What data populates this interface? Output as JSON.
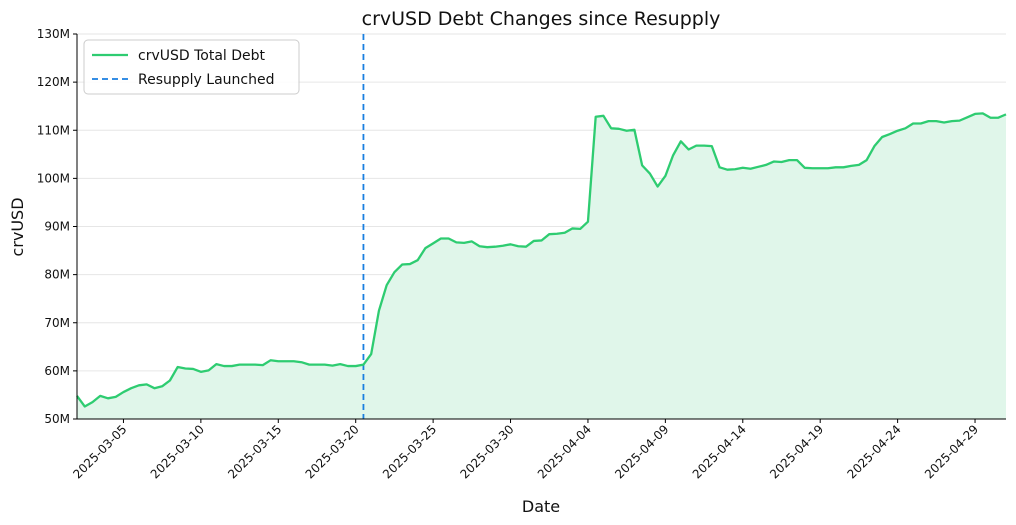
{
  "chart_data": {
    "type": "line",
    "title": "crvUSD Debt Changes since Resupply",
    "xlabel": "Date",
    "ylabel": "crvUSD",
    "x_range": [
      "2025-03-02",
      "2025-05-01"
    ],
    "ylim": [
      50,
      130
    ],
    "y_unit": "M",
    "y_ticks": [
      50,
      60,
      70,
      80,
      90,
      100,
      110,
      120,
      130
    ],
    "y_tick_labels": [
      "50M",
      "60M",
      "70M",
      "80M",
      "90M",
      "100M",
      "110M",
      "120M",
      "130M"
    ],
    "x_ticks": [
      "2025-03-05",
      "2025-03-10",
      "2025-03-15",
      "2025-03-20",
      "2025-03-25",
      "2025-03-30",
      "2025-04-04",
      "2025-04-09",
      "2025-04-14",
      "2025-04-19",
      "2025-04-24",
      "2025-04-29"
    ],
    "grid": "horizontal",
    "legend_position": "top-left",
    "series": [
      {
        "name": "crvUSD Total Debt",
        "color": "#2ecc71",
        "fill_color": "#e0f6ea",
        "points": [
          [
            "2025-03-02",
            54.8
          ],
          [
            "2025-03-02T12",
            52.6
          ],
          [
            "2025-03-03",
            53.5
          ],
          [
            "2025-03-03T12",
            54.8
          ],
          [
            "2025-03-04",
            54.3
          ],
          [
            "2025-03-04T12",
            54.6
          ],
          [
            "2025-03-05",
            55.6
          ],
          [
            "2025-03-05T12",
            56.4
          ],
          [
            "2025-03-06",
            57.0
          ],
          [
            "2025-03-06T12",
            57.2
          ],
          [
            "2025-03-07",
            56.4
          ],
          [
            "2025-03-07T12",
            56.8
          ],
          [
            "2025-03-08",
            58.0
          ],
          [
            "2025-03-08T12",
            60.8
          ],
          [
            "2025-03-09",
            60.5
          ],
          [
            "2025-03-09T12",
            60.4
          ],
          [
            "2025-03-10",
            59.8
          ],
          [
            "2025-03-10T12",
            60.1
          ],
          [
            "2025-03-11",
            61.4
          ],
          [
            "2025-03-11T12",
            61.0
          ],
          [
            "2025-03-12",
            61.0
          ],
          [
            "2025-03-12T12",
            61.3
          ],
          [
            "2025-03-13",
            61.3
          ],
          [
            "2025-03-13T12",
            61.3
          ],
          [
            "2025-03-14",
            61.2
          ],
          [
            "2025-03-14T12",
            62.2
          ],
          [
            "2025-03-15",
            62.0
          ],
          [
            "2025-03-15T12",
            62.0
          ],
          [
            "2025-03-16",
            62.0
          ],
          [
            "2025-03-16T12",
            61.8
          ],
          [
            "2025-03-17",
            61.3
          ],
          [
            "2025-03-17T12",
            61.3
          ],
          [
            "2025-03-18",
            61.3
          ],
          [
            "2025-03-18T12",
            61.1
          ],
          [
            "2025-03-19",
            61.4
          ],
          [
            "2025-03-19T12",
            61.0
          ],
          [
            "2025-03-20",
            61.0
          ],
          [
            "2025-03-20T12",
            61.3
          ],
          [
            "2025-03-21",
            63.5
          ],
          [
            "2025-03-21T12",
            72.5
          ],
          [
            "2025-03-22",
            77.8
          ],
          [
            "2025-03-22T12",
            80.5
          ],
          [
            "2025-03-23",
            82.1
          ],
          [
            "2025-03-23T12",
            82.2
          ],
          [
            "2025-03-24",
            83.0
          ],
          [
            "2025-03-24T12",
            85.5
          ],
          [
            "2025-03-25",
            86.5
          ],
          [
            "2025-03-25T12",
            87.5
          ],
          [
            "2025-03-26",
            87.5
          ],
          [
            "2025-03-26T12",
            86.7
          ],
          [
            "2025-03-27",
            86.6
          ],
          [
            "2025-03-27T12",
            86.9
          ],
          [
            "2025-03-28",
            85.9
          ],
          [
            "2025-03-28T12",
            85.7
          ],
          [
            "2025-03-29",
            85.8
          ],
          [
            "2025-03-29T12",
            86.0
          ],
          [
            "2025-03-30",
            86.3
          ],
          [
            "2025-03-30T12",
            85.9
          ],
          [
            "2025-03-31",
            85.8
          ],
          [
            "2025-03-31T12",
            87.0
          ],
          [
            "2025-04-01",
            87.1
          ],
          [
            "2025-04-01T12",
            88.4
          ],
          [
            "2025-04-02",
            88.5
          ],
          [
            "2025-04-02T12",
            88.7
          ],
          [
            "2025-04-03",
            89.6
          ],
          [
            "2025-04-03T12",
            89.5
          ],
          [
            "2025-04-04",
            91.0
          ],
          [
            "2025-04-04T12",
            112.8
          ],
          [
            "2025-04-05",
            113.0
          ],
          [
            "2025-04-05T12",
            110.4
          ],
          [
            "2025-04-06",
            110.3
          ],
          [
            "2025-04-06T12",
            109.9
          ],
          [
            "2025-04-07",
            110.1
          ],
          [
            "2025-04-07T12",
            102.7
          ],
          [
            "2025-04-08",
            101.0
          ],
          [
            "2025-04-08T12",
            98.3
          ],
          [
            "2025-04-09",
            100.5
          ],
          [
            "2025-04-09T12",
            104.8
          ],
          [
            "2025-04-10",
            107.7
          ],
          [
            "2025-04-10T12",
            106.0
          ],
          [
            "2025-04-11",
            106.8
          ],
          [
            "2025-04-11T12",
            106.8
          ],
          [
            "2025-04-12",
            106.7
          ],
          [
            "2025-04-12T12",
            102.3
          ],
          [
            "2025-04-13",
            101.8
          ],
          [
            "2025-04-13T12",
            101.9
          ],
          [
            "2025-04-14",
            102.2
          ],
          [
            "2025-04-14T12",
            102.0
          ],
          [
            "2025-04-15",
            102.4
          ],
          [
            "2025-04-15T12",
            102.8
          ],
          [
            "2025-04-16",
            103.5
          ],
          [
            "2025-04-16T12",
            103.4
          ],
          [
            "2025-04-17",
            103.8
          ],
          [
            "2025-04-17T12",
            103.8
          ],
          [
            "2025-04-18",
            102.2
          ],
          [
            "2025-04-18T12",
            102.1
          ],
          [
            "2025-04-19",
            102.1
          ],
          [
            "2025-04-19T12",
            102.1
          ],
          [
            "2025-04-20",
            102.3
          ],
          [
            "2025-04-20T12",
            102.3
          ],
          [
            "2025-04-21",
            102.6
          ],
          [
            "2025-04-21T12",
            102.8
          ],
          [
            "2025-04-22",
            103.8
          ],
          [
            "2025-04-22T12",
            106.7
          ],
          [
            "2025-04-23",
            108.6
          ],
          [
            "2025-04-23T12",
            109.2
          ],
          [
            "2025-04-24",
            109.9
          ],
          [
            "2025-04-24T12",
            110.4
          ],
          [
            "2025-04-25",
            111.4
          ],
          [
            "2025-04-25T12",
            111.4
          ],
          [
            "2025-04-26",
            111.9
          ],
          [
            "2025-04-26T12",
            111.9
          ],
          [
            "2025-04-27",
            111.6
          ],
          [
            "2025-04-27T12",
            111.9
          ],
          [
            "2025-04-28",
            112.0
          ],
          [
            "2025-04-28T12",
            112.7
          ],
          [
            "2025-04-29",
            113.4
          ],
          [
            "2025-04-29T12",
            113.5
          ],
          [
            "2025-04-30",
            112.6
          ],
          [
            "2025-04-30T12",
            112.6
          ],
          [
            "2025-05-01",
            113.3
          ]
        ]
      }
    ],
    "markers": [
      {
        "name": "Resupply Launched",
        "x": "2025-03-20T12",
        "color": "#1a7fe0",
        "style": "dashed"
      }
    ]
  }
}
